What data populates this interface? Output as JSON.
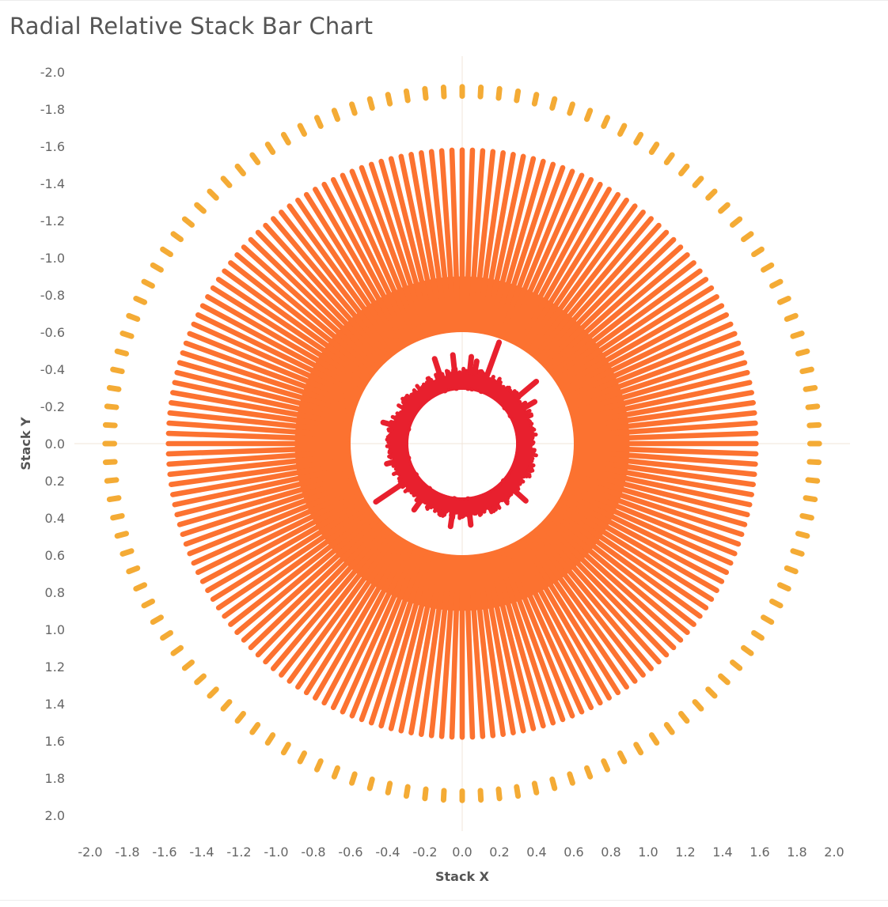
{
  "title": "Radial Relative Stack Bar Chart",
  "chart_data": {
    "type": "radial-stacked-bar",
    "title": "Radial Relative Stack Bar Chart",
    "xlabel": "Stack X",
    "ylabel": "Stack Y",
    "xlim": [
      -2.0,
      2.0
    ],
    "ylim": [
      -2.0,
      2.0
    ],
    "y_axis_reversed": true,
    "grid": false,
    "x_ticks": [
      "-2.0",
      "-1.8",
      "-1.6",
      "-1.4",
      "-1.2",
      "-1.0",
      "-0.8",
      "-0.6",
      "-0.4",
      "-0.2",
      "0.0",
      "0.2",
      "0.4",
      "0.6",
      "0.8",
      "1.0",
      "1.2",
      "1.4",
      "1.6",
      "1.8",
      "2.0"
    ],
    "y_ticks": [
      "-2.0",
      "-1.8",
      "-1.6",
      "-1.4",
      "-1.2",
      "-1.0",
      "-0.8",
      "-0.6",
      "-0.4",
      "-0.2",
      "0.0",
      "0.2",
      "0.4",
      "0.6",
      "0.8",
      "1.0",
      "1.2",
      "1.4",
      "1.6",
      "1.8",
      "2.0"
    ],
    "spoke_count": 180,
    "series": [
      {
        "color": "#e8202e",
        "inner_radius": 0.3,
        "base_outer_radius": 0.38,
        "spikes": [
          {
            "angle_deg": 70,
            "outer_radius": 0.58
          },
          {
            "angle_deg": 80,
            "outer_radius": 0.45
          },
          {
            "angle_deg": 84,
            "outer_radius": 0.47
          },
          {
            "angle_deg": 96,
            "outer_radius": 0.48
          },
          {
            "angle_deg": 108,
            "outer_radius": 0.48
          },
          {
            "angle_deg": 40,
            "outer_radius": 0.52
          },
          {
            "angle_deg": 30,
            "outer_radius": 0.45
          },
          {
            "angle_deg": 214,
            "outer_radius": 0.56
          },
          {
            "angle_deg": 234,
            "outer_radius": 0.44
          },
          {
            "angle_deg": 262,
            "outer_radius": 0.45
          },
          {
            "angle_deg": 276,
            "outer_radius": 0.44
          },
          {
            "angle_deg": 318,
            "outer_radius": 0.46
          },
          {
            "angle_deg": 165,
            "outer_radius": 0.44
          },
          {
            "angle_deg": 195,
            "outer_radius": 0.42
          }
        ]
      },
      {
        "color": "#fc7230",
        "inner_radius": 0.6,
        "outer_radius": 1.6
      },
      {
        "color": "#f4ab35",
        "inner_radius": 1.87,
        "outer_radius": 1.92
      }
    ]
  }
}
